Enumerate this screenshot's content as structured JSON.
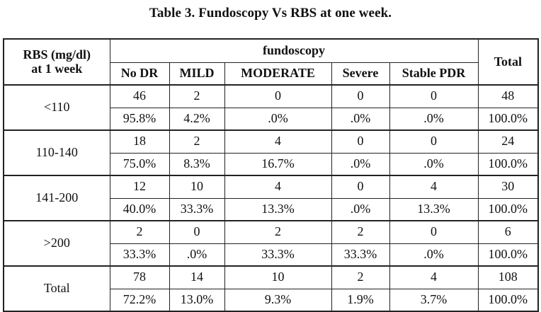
{
  "caption": "Table 3. Fundoscopy Vs RBS at one week.",
  "table": {
    "corner_label_line1": "RBS (mg/dl)",
    "corner_label_line2": "at 1 week",
    "group_header": "fundoscopy",
    "total_header": "Total",
    "columns": [
      "No DR",
      "MILD",
      "MODERATE",
      "Severe",
      "Stable PDR"
    ],
    "rows": [
      {
        "label": "<110",
        "counts": [
          "46",
          "2",
          "0",
          "0",
          "0",
          "48"
        ],
        "percents": [
          "95.8%",
          "4.2%",
          ".0%",
          ".0%",
          ".0%",
          "100.0%"
        ]
      },
      {
        "label": "110-140",
        "counts": [
          "18",
          "2",
          "4",
          "0",
          "0",
          "24"
        ],
        "percents": [
          "75.0%",
          "8.3%",
          "16.7%",
          ".0%",
          ".0%",
          "100.0%"
        ]
      },
      {
        "label": "141-200",
        "counts": [
          "12",
          "10",
          "4",
          "0",
          "4",
          "30"
        ],
        "percents": [
          "40.0%",
          "33.3%",
          "13.3%",
          ".0%",
          "13.3%",
          "100.0%"
        ]
      },
      {
        "label": ">200",
        "counts": [
          "2",
          "0",
          "2",
          "2",
          "0",
          "6"
        ],
        "percents": [
          "33.3%",
          ".0%",
          "33.3%",
          "33.3%",
          ".0%",
          "100.0%"
        ]
      },
      {
        "label": "Total",
        "counts": [
          "78",
          "14",
          "10",
          "2",
          "4",
          "108"
        ],
        "percents": [
          "72.2%",
          "13.0%",
          "9.3%",
          "1.9%",
          "3.7%",
          "100.0%"
        ]
      }
    ]
  }
}
